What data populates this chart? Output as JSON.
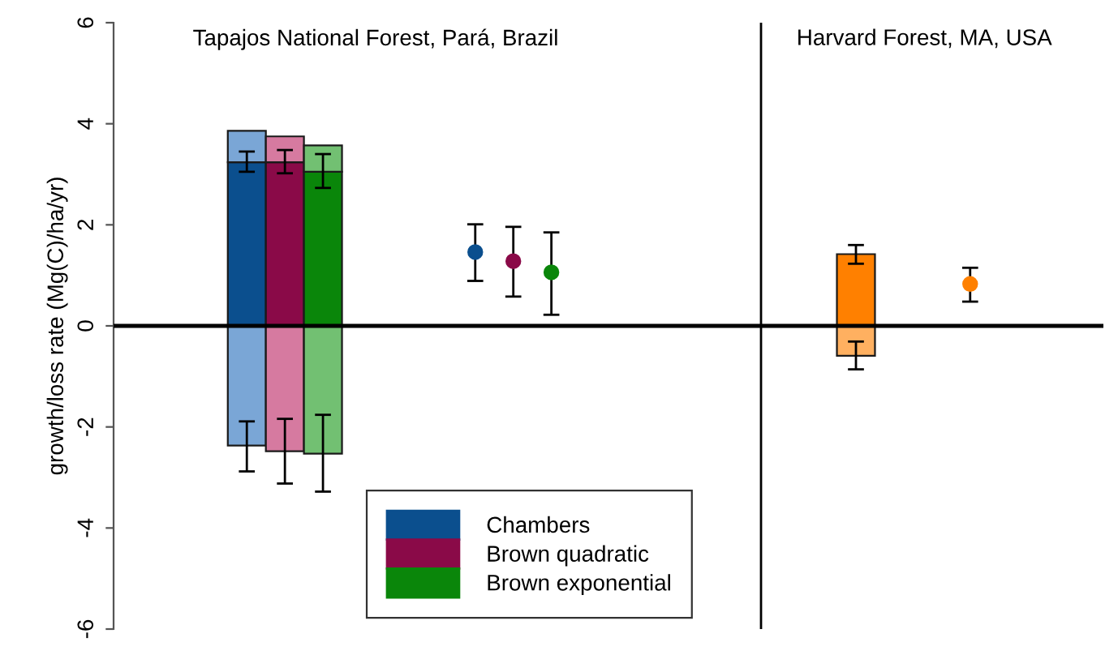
{
  "chart_data": {
    "type": "bar",
    "title": "Tapajos National Forest, Pará, Brazil",
    "ylabel": "growth/loss rate (Mg(C)/ha/yr)",
    "stacked": true,
    "legend": "bottom",
    "grid": false,
    "annotations": [
      "Harvard Forest, MA, USA"
    ],
    "categories": [
      null,
      null,
      null,
      null,
      null,
      null,
      null,
      null,
      null,
      null,
      null,
      null,
      null,
      null,
      null,
      null,
      null,
      null,
      null,
      null,
      null,
      null,
      null,
      null,
      null,
      null
    ],
    "ylim": [
      -6,
      6
    ],
    "yticks": [
      -6,
      -4,
      -2,
      0,
      2,
      4,
      6
    ],
    "ref_lines": [
      {
        "axis": "y",
        "value": 0,
        "color": "#000000"
      }
    ],
    "series": [
      {
        "name": "Chambers",
        "color": "#0b4f8e",
        "values": [
          null,
          null,
          null,
          3.24,
          null,
          null,
          null,
          null,
          null,
          null,
          null,
          null,
          null,
          null,
          null,
          null,
          null,
          null,
          null,
          null,
          null,
          null,
          null,
          null,
          null,
          null
        ],
        "errors": [
          null,
          null,
          null,
          [
            3.05,
            3.45
          ],
          null,
          null,
          null,
          null,
          null,
          null,
          null,
          null,
          null,
          null,
          null,
          null,
          null,
          null,
          null,
          null,
          null,
          null,
          null,
          null,
          null,
          null
        ]
      },
      {
        "name": "Brown quadratic",
        "color": "#8a0a48",
        "values": [
          null,
          null,
          null,
          null,
          3.24,
          null,
          null,
          null,
          null,
          null,
          null,
          null,
          null,
          null,
          null,
          null,
          null,
          null,
          null,
          null,
          null,
          null,
          null,
          null,
          null,
          null
        ],
        "errors": [
          null,
          null,
          null,
          null,
          [
            3.02,
            3.48
          ],
          null,
          null,
          null,
          null,
          null,
          null,
          null,
          null,
          null,
          null,
          null,
          null,
          null,
          null,
          null,
          null,
          null,
          null,
          null,
          null,
          null
        ]
      },
      {
        "name": "Brown exponential",
        "color": "#0a860a",
        "values": [
          null,
          null,
          null,
          null,
          null,
          3.05,
          null,
          null,
          null,
          null,
          null,
          null,
          null,
          null,
          null,
          null,
          null,
          null,
          null,
          null,
          null,
          null,
          null,
          null,
          null,
          null
        ],
        "errors": [
          null,
          null,
          null,
          null,
          null,
          [
            2.73,
            3.4
          ],
          null,
          null,
          null,
          null,
          null,
          null,
          null,
          null,
          null,
          null,
          null,
          null,
          null,
          null,
          null,
          null,
          null,
          null,
          null,
          null
        ]
      },
      {
        "color": "#ff8000",
        "values": [
          null,
          null,
          null,
          null,
          null,
          null,
          null,
          null,
          null,
          null,
          null,
          null,
          null,
          null,
          null,
          null,
          null,
          null,
          null,
          1.42,
          null,
          null,
          null,
          null,
          null,
          null
        ],
        "errors": [
          null,
          null,
          null,
          null,
          null,
          null,
          null,
          null,
          null,
          null,
          null,
          null,
          null,
          null,
          null,
          null,
          null,
          null,
          null,
          [
            1.23,
            1.6
          ],
          null,
          null,
          null,
          null,
          null,
          null
        ]
      },
      {
        "colors": [
          null,
          null,
          null,
          "#7aa6d6",
          "#d67aa0",
          "#72c072",
          null,
          null,
          null,
          null,
          null,
          null,
          null,
          null,
          null,
          null,
          null,
          null,
          null,
          null,
          null,
          null,
          null,
          null,
          null,
          null
        ],
        "values": [
          null,
          null,
          null,
          0.62,
          0.51,
          0.52,
          null,
          null,
          null,
          null,
          null,
          null,
          null,
          null,
          null,
          null,
          null,
          null,
          null,
          null,
          null,
          null,
          null,
          null,
          null,
          null
        ]
      },
      {
        "colors": [
          null,
          null,
          null,
          "#7aa6d6",
          "#d67aa0",
          "#72c072",
          null,
          null,
          null,
          null,
          null,
          null,
          null,
          null,
          null,
          null,
          null,
          null,
          null,
          "#ffb060",
          null,
          null,
          null,
          null,
          null,
          null
        ],
        "values": [
          null,
          null,
          null,
          -2.37,
          -2.48,
          -2.53,
          null,
          null,
          null,
          null,
          null,
          null,
          null,
          null,
          null,
          null,
          null,
          null,
          null,
          -0.59,
          null,
          null,
          null,
          null,
          null,
          null
        ],
        "errors": [
          null,
          null,
          null,
          [
            -2.88,
            -1.89
          ],
          [
            -3.12,
            -1.84
          ],
          [
            -3.28,
            -1.76
          ],
          null,
          null,
          null,
          null,
          null,
          null,
          null,
          null,
          null,
          null,
          null,
          null,
          null,
          [
            -0.86,
            -0.31
          ],
          null,
          null,
          null,
          null,
          null,
          null
        ]
      },
      {
        "type": "scatter",
        "marker": "circle",
        "color": "#0b4f8e",
        "values": [
          null,
          null,
          null,
          null,
          null,
          null,
          null,
          null,
          null,
          1.46,
          null,
          null,
          null,
          null,
          null,
          null,
          null,
          null,
          null,
          null,
          null,
          null,
          null,
          null,
          null,
          null
        ],
        "errors": [
          null,
          null,
          null,
          null,
          null,
          null,
          null,
          null,
          null,
          [
            0.89,
            2.01
          ],
          null,
          null,
          null,
          null,
          null,
          null,
          null,
          null,
          null,
          null,
          null,
          null,
          null,
          null,
          null,
          null
        ]
      },
      {
        "type": "scatter",
        "marker": "circle",
        "color": "#8a0a48",
        "values": [
          null,
          null,
          null,
          null,
          null,
          null,
          null,
          null,
          null,
          null,
          1.28,
          null,
          null,
          null,
          null,
          null,
          null,
          null,
          null,
          null,
          null,
          null,
          null,
          null,
          null,
          null
        ],
        "errors": [
          null,
          null,
          null,
          null,
          null,
          null,
          null,
          null,
          null,
          null,
          [
            0.58,
            1.96
          ],
          null,
          null,
          null,
          null,
          null,
          null,
          null,
          null,
          null,
          null,
          null,
          null,
          null,
          null,
          null
        ]
      },
      {
        "type": "scatter",
        "marker": "circle",
        "color": "#0a860a",
        "values": [
          null,
          null,
          null,
          null,
          null,
          null,
          null,
          null,
          null,
          null,
          null,
          1.06,
          null,
          null,
          null,
          null,
          null,
          null,
          null,
          null,
          null,
          null,
          null,
          null,
          null,
          null
        ],
        "errors": [
          null,
          null,
          null,
          null,
          null,
          null,
          null,
          null,
          null,
          null,
          null,
          [
            0.22,
            1.85
          ],
          null,
          null,
          null,
          null,
          null,
          null,
          null,
          null,
          null,
          null,
          null,
          null,
          null,
          null
        ]
      },
      {
        "type": "scatter",
        "marker": "circle",
        "color": "#ff8000",
        "values": [
          null,
          null,
          null,
          null,
          null,
          null,
          null,
          null,
          null,
          null,
          null,
          null,
          null,
          null,
          null,
          null,
          null,
          null,
          null,
          null,
          null,
          null,
          0.83,
          null,
          null,
          null
        ],
        "errors": [
          null,
          null,
          null,
          null,
          null,
          null,
          null,
          null,
          null,
          null,
          null,
          null,
          null,
          null,
          null,
          null,
          null,
          null,
          null,
          null,
          null,
          null,
          [
            0.48,
            1.15
          ],
          null,
          null,
          null
        ]
      }
    ]
  }
}
